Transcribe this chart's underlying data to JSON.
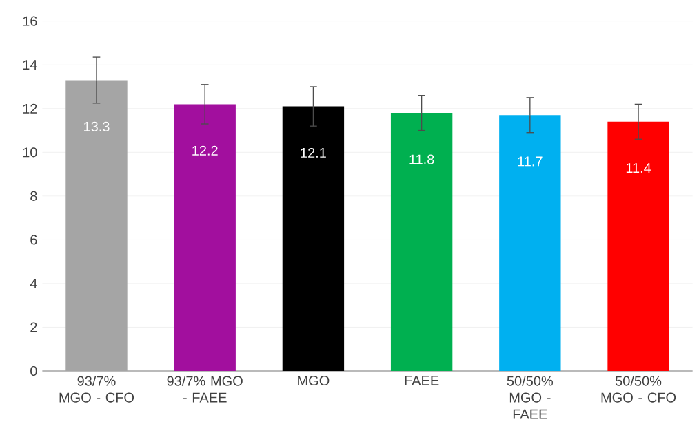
{
  "chart_data": {
    "type": "bar",
    "categories": [
      "93/7% MGO - CFO",
      "93/7% MGO - FAEE",
      "MGO",
      "FAEE",
      "50/50% MGO - FAEE",
      "50/50% MGO - CFO"
    ],
    "values": [
      13.3,
      12.2,
      12.1,
      11.8,
      11.7,
      11.4
    ],
    "errors": [
      1.05,
      0.9,
      0.9,
      0.8,
      0.8,
      0.8
    ],
    "colors": [
      "#a5a5a5",
      "#a20f9e",
      "#000000",
      "#00b050",
      "#00b0f0",
      "#ff0000"
    ],
    "ylim": [
      0,
      16
    ],
    "yticks": [
      0,
      2,
      4,
      6,
      8,
      10,
      12,
      14,
      16
    ],
    "grid": "y",
    "data_labels": true
  }
}
